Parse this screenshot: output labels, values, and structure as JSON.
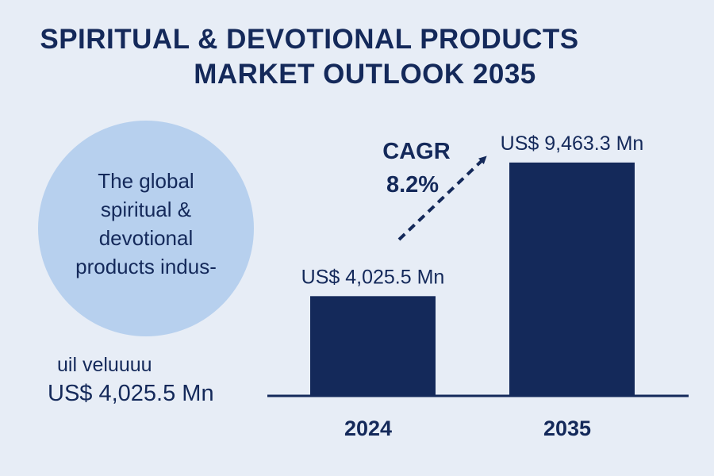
{
  "header": {
    "title_line1": "SPIRITUAL & DEVOTIONAL PRODUCTS",
    "title_line2": "MARKET OUTLOOK 2035"
  },
  "callout": {
    "text_lines": [
      "The global",
      "spiritual &",
      "devotional",
      "products indus-"
    ],
    "caption": "uil veluuuu",
    "value": "US$ 4,025.5 Mn"
  },
  "cagr": {
    "label": "CAGR",
    "value": "8.2%"
  },
  "colors": {
    "background": "#e7edf6",
    "bar": "#14295a",
    "circle": "#b7d0ee",
    "text": "#14295a"
  },
  "chart_data": {
    "type": "bar",
    "categories": [
      "2024",
      "2035"
    ],
    "values": [
      4025.5,
      9463.3
    ],
    "value_labels": [
      "US$ 4,025.5 Mn",
      "US$ 9,463.3 Mn"
    ],
    "unit": "US$ Mn",
    "ylim": [
      0,
      12300
    ],
    "grid": false,
    "legend": "none"
  }
}
